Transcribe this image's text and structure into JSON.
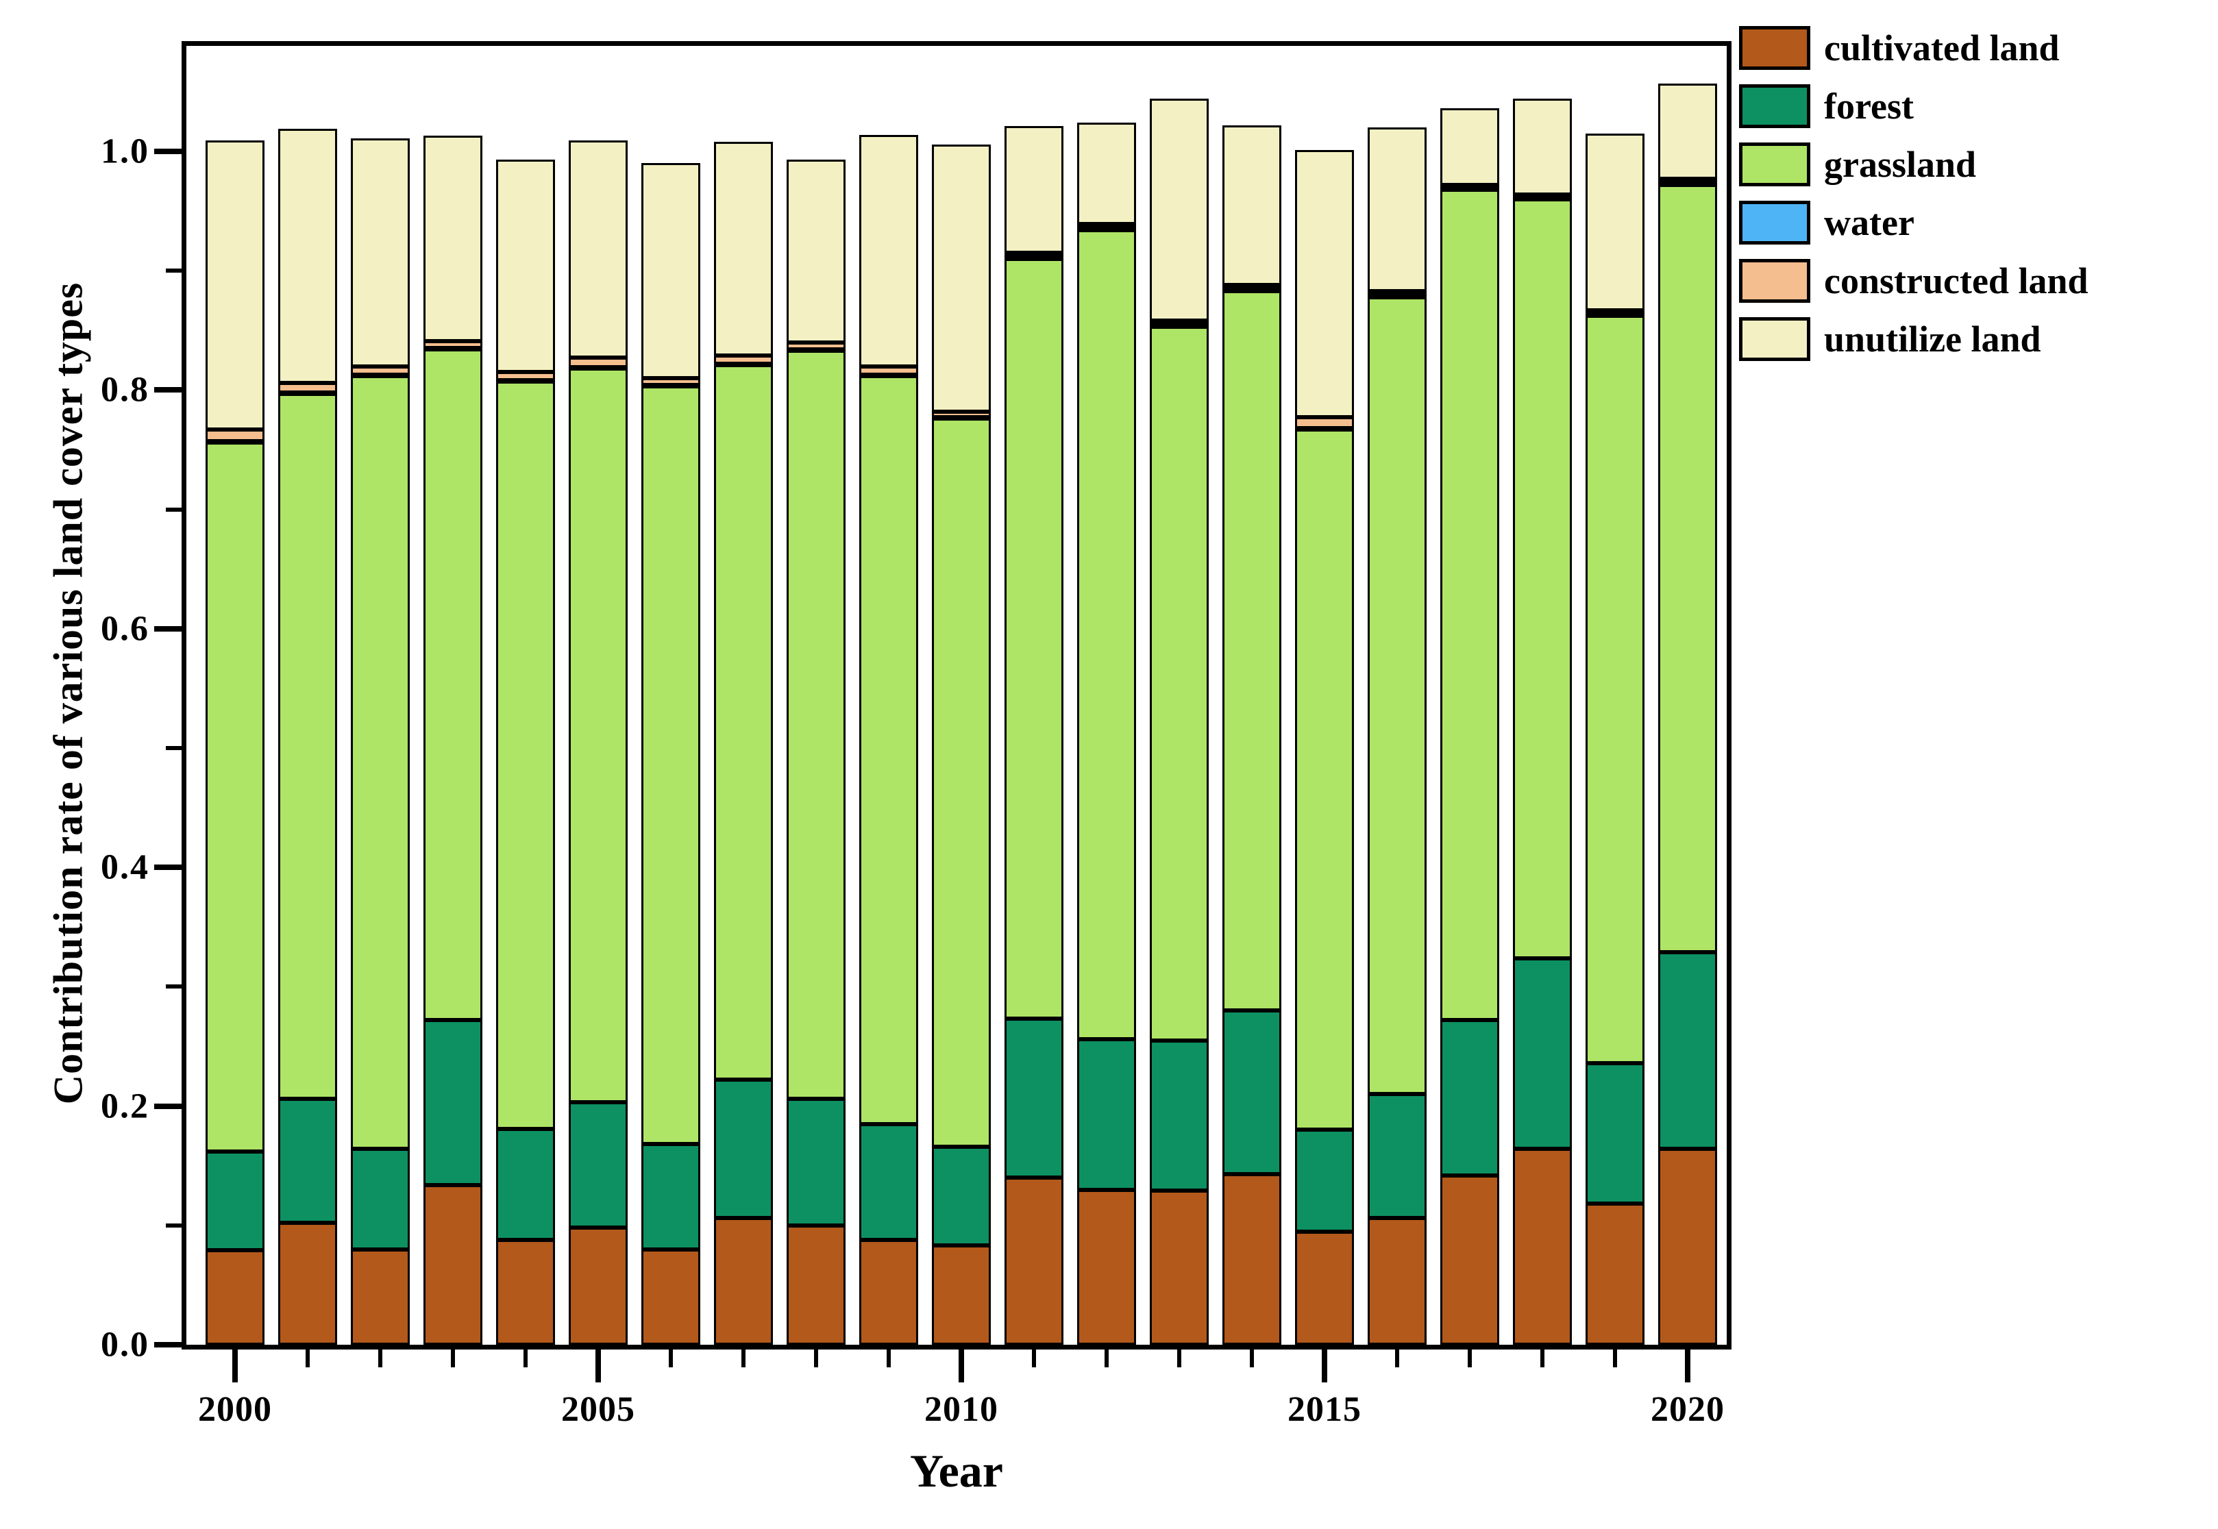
{
  "figure": {
    "background_color": "#ffffff",
    "frame_color": "#000000",
    "y_axis": {
      "label": "Contribution rate of various land cover types",
      "tick_labels": [
        "0.0",
        "0.2",
        "0.4",
        "0.6",
        "0.8",
        "1.0"
      ],
      "major_tick_values": [
        0.0,
        0.2,
        0.4,
        0.6,
        0.8,
        1.0
      ],
      "minor_tick_values": [
        0.1,
        0.3,
        0.5,
        0.7,
        0.9
      ]
    },
    "x_axis": {
      "label": "Year",
      "tick_labels": [
        "2000",
        "2005",
        "2010",
        "2015",
        "2020"
      ],
      "major_tick_year_indices": [
        0,
        5,
        10,
        15,
        20
      ]
    }
  },
  "chart_data": {
    "type": "bar",
    "stacked": true,
    "grid": false,
    "legend_position": "outside upper right",
    "title": "",
    "xlabel": "Year",
    "ylabel": "Contribution rate of various land cover types",
    "ylim": [
      0,
      1.088
    ],
    "categories": [
      2000,
      2001,
      2002,
      2003,
      2004,
      2005,
      2006,
      2007,
      2008,
      2009,
      2010,
      2011,
      2012,
      2013,
      2014,
      2015,
      2016,
      2017,
      2018,
      2019,
      2020
    ],
    "series": [
      {
        "name": "cultivated land",
        "color": "#B3591B",
        "values": [
          0.079,
          0.102,
          0.08,
          0.134,
          0.088,
          0.098,
          0.08,
          0.106,
          0.1,
          0.088,
          0.083,
          0.14,
          0.13,
          0.129,
          0.143,
          0.095,
          0.106,
          0.142,
          0.164,
          0.118,
          0.164
        ]
      },
      {
        "name": "forest",
        "color": "#0D9162",
        "values": [
          0.083,
          0.104,
          0.084,
          0.138,
          0.093,
          0.105,
          0.088,
          0.116,
          0.106,
          0.097,
          0.083,
          0.133,
          0.126,
          0.126,
          0.137,
          0.085,
          0.104,
          0.13,
          0.16,
          0.118,
          0.165
        ]
      },
      {
        "name": "grassland",
        "color": "#AEE566",
        "values": [
          0.594,
          0.591,
          0.648,
          0.562,
          0.626,
          0.615,
          0.635,
          0.599,
          0.627,
          0.627,
          0.61,
          0.637,
          0.678,
          0.598,
          0.603,
          0.587,
          0.668,
          0.696,
          0.636,
          0.626,
          0.643
        ]
      },
      {
        "name": "water",
        "color": "#4FB4F6",
        "values": [
          0.001,
          0.001,
          0.001,
          0.001,
          0.001,
          0.001,
          0.001,
          0.001,
          0.001,
          0.001,
          0.001,
          0.001,
          0.001,
          0.001,
          0.001,
          0.001,
          0.001,
          0.001,
          0.001,
          0.001,
          0.001
        ]
      },
      {
        "name": "constructed land",
        "color": "#F5BE8E",
        "values": [
          0.01,
          0.008,
          0.007,
          0.006,
          0.007,
          0.008,
          0.006,
          0.007,
          0.006,
          0.007,
          0.005,
          0.004,
          0.004,
          0.004,
          0.004,
          0.009,
          0.004,
          0.003,
          0.003,
          0.004,
          0.004
        ]
      },
      {
        "name": "unutilize land",
        "color": "#F3F0C3",
        "values": [
          0.242,
          0.213,
          0.191,
          0.172,
          0.178,
          0.182,
          0.18,
          0.179,
          0.153,
          0.194,
          0.224,
          0.106,
          0.085,
          0.186,
          0.134,
          0.224,
          0.137,
          0.064,
          0.08,
          0.148,
          0.08
        ]
      }
    ]
  }
}
